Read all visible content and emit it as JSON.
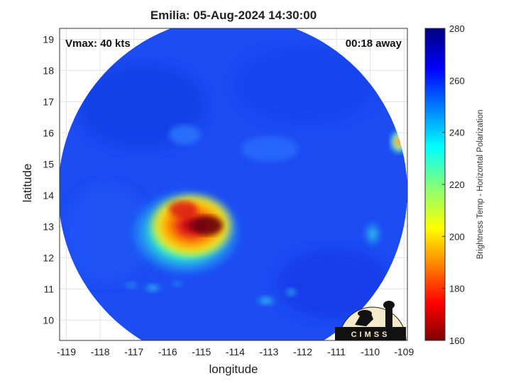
{
  "title": "Emilia: 05-Aug-2024 14:30:00",
  "annotations": {
    "vmax": "Vmax: 40 kts",
    "away": "00:18 away"
  },
  "axes": {
    "xlabel": "longitude",
    "ylabel": "latitude",
    "xlim": [
      -119.2,
      -108.9
    ],
    "ylim": [
      9.35,
      19.35
    ],
    "xticks": [
      -119,
      -118,
      -117,
      -116,
      -115,
      -114,
      -113,
      -112,
      -111,
      -110,
      -109
    ],
    "yticks": [
      10,
      11,
      12,
      13,
      14,
      15,
      16,
      17,
      18,
      19
    ],
    "grid": true
  },
  "colorbar": {
    "label": "Brightness Temp - Horizontal Polarization",
    "min": 160,
    "max": 280,
    "ticks": [
      160,
      180,
      200,
      220,
      240,
      260,
      280
    ],
    "colormap": "jet"
  },
  "swath": {
    "center_lon": -114.1,
    "center_lat": 14.1,
    "background_temp_K": 263
  },
  "features": [
    {
      "name": "convection-core",
      "lon": -114.9,
      "lat": 13.0,
      "min_temp_K": 170
    },
    {
      "name": "rainband-south",
      "lon": -113.2,
      "lat": 10.7,
      "min_temp_K": 228
    },
    {
      "name": "edge-cell-east",
      "lon": -109.1,
      "lat": 15.7,
      "min_temp_K": 185
    }
  ],
  "logo": {
    "text": "CIMSS"
  }
}
